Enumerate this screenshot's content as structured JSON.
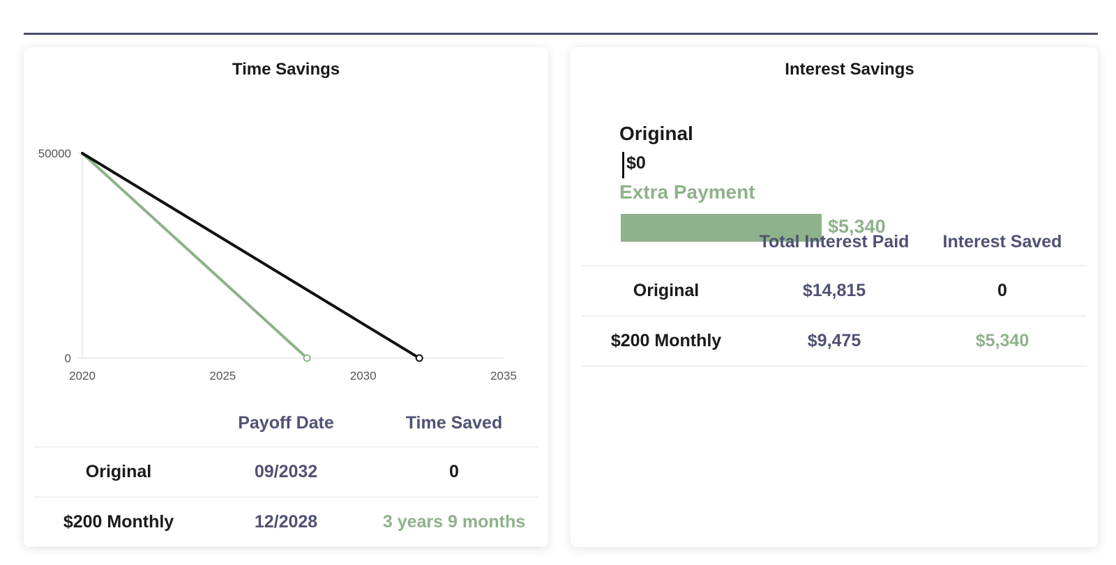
{
  "time_card": {
    "title": "Time Savings",
    "table": {
      "headers": [
        "",
        "Payoff Date",
        "Time Saved"
      ],
      "rows": [
        {
          "label": "Original",
          "payoff_date": "09/2032",
          "time_saved": "0"
        },
        {
          "label": "$200 Monthly",
          "payoff_date": "12/2028",
          "time_saved": "3 years 9 months"
        }
      ]
    }
  },
  "interest_card": {
    "title": "Interest Savings",
    "bars": {
      "original_label": "Original",
      "original_value": "$0",
      "extra_label": "Extra Payment",
      "extra_value": "$5,340"
    },
    "table": {
      "headers": [
        "",
        "Total Interest Paid",
        "Interest Saved"
      ],
      "rows": [
        {
          "label": "Original",
          "total_interest": "$14,815",
          "interest_saved": "0"
        },
        {
          "label": "$200 Monthly",
          "total_interest": "$9,475",
          "interest_saved": "$5,340"
        }
      ]
    }
  },
  "colors": {
    "rule": "#4a4c6e",
    "original_line": "#111111",
    "extra_line": "#8eb28a",
    "header_text": "#4f5273"
  },
  "chart_data": [
    {
      "type": "line",
      "title": "Time Savings",
      "xlabel": "",
      "ylabel": "",
      "xlim": [
        2020,
        2035
      ],
      "ylim": [
        0,
        50000
      ],
      "x_ticks": [
        "2020",
        "2025",
        "2030",
        "2035"
      ],
      "y_ticks": [
        "0",
        "50000"
      ],
      "grid": false,
      "series": [
        {
          "color": "#111111",
          "x": [
            2020,
            2032
          ],
          "y": [
            50000,
            0
          ]
        },
        {
          "color": "#8eb28a",
          "x": [
            2020,
            2028
          ],
          "y": [
            50000,
            0
          ]
        }
      ]
    },
    {
      "type": "bar",
      "title": "Interest Savings",
      "categories": [
        "Original",
        "Extra Payment"
      ],
      "values": [
        0,
        5340
      ],
      "value_labels": [
        "$0",
        "$5,340"
      ],
      "colors": [
        "#111111",
        "#8eb28a"
      ],
      "orientation": "horizontal"
    }
  ]
}
